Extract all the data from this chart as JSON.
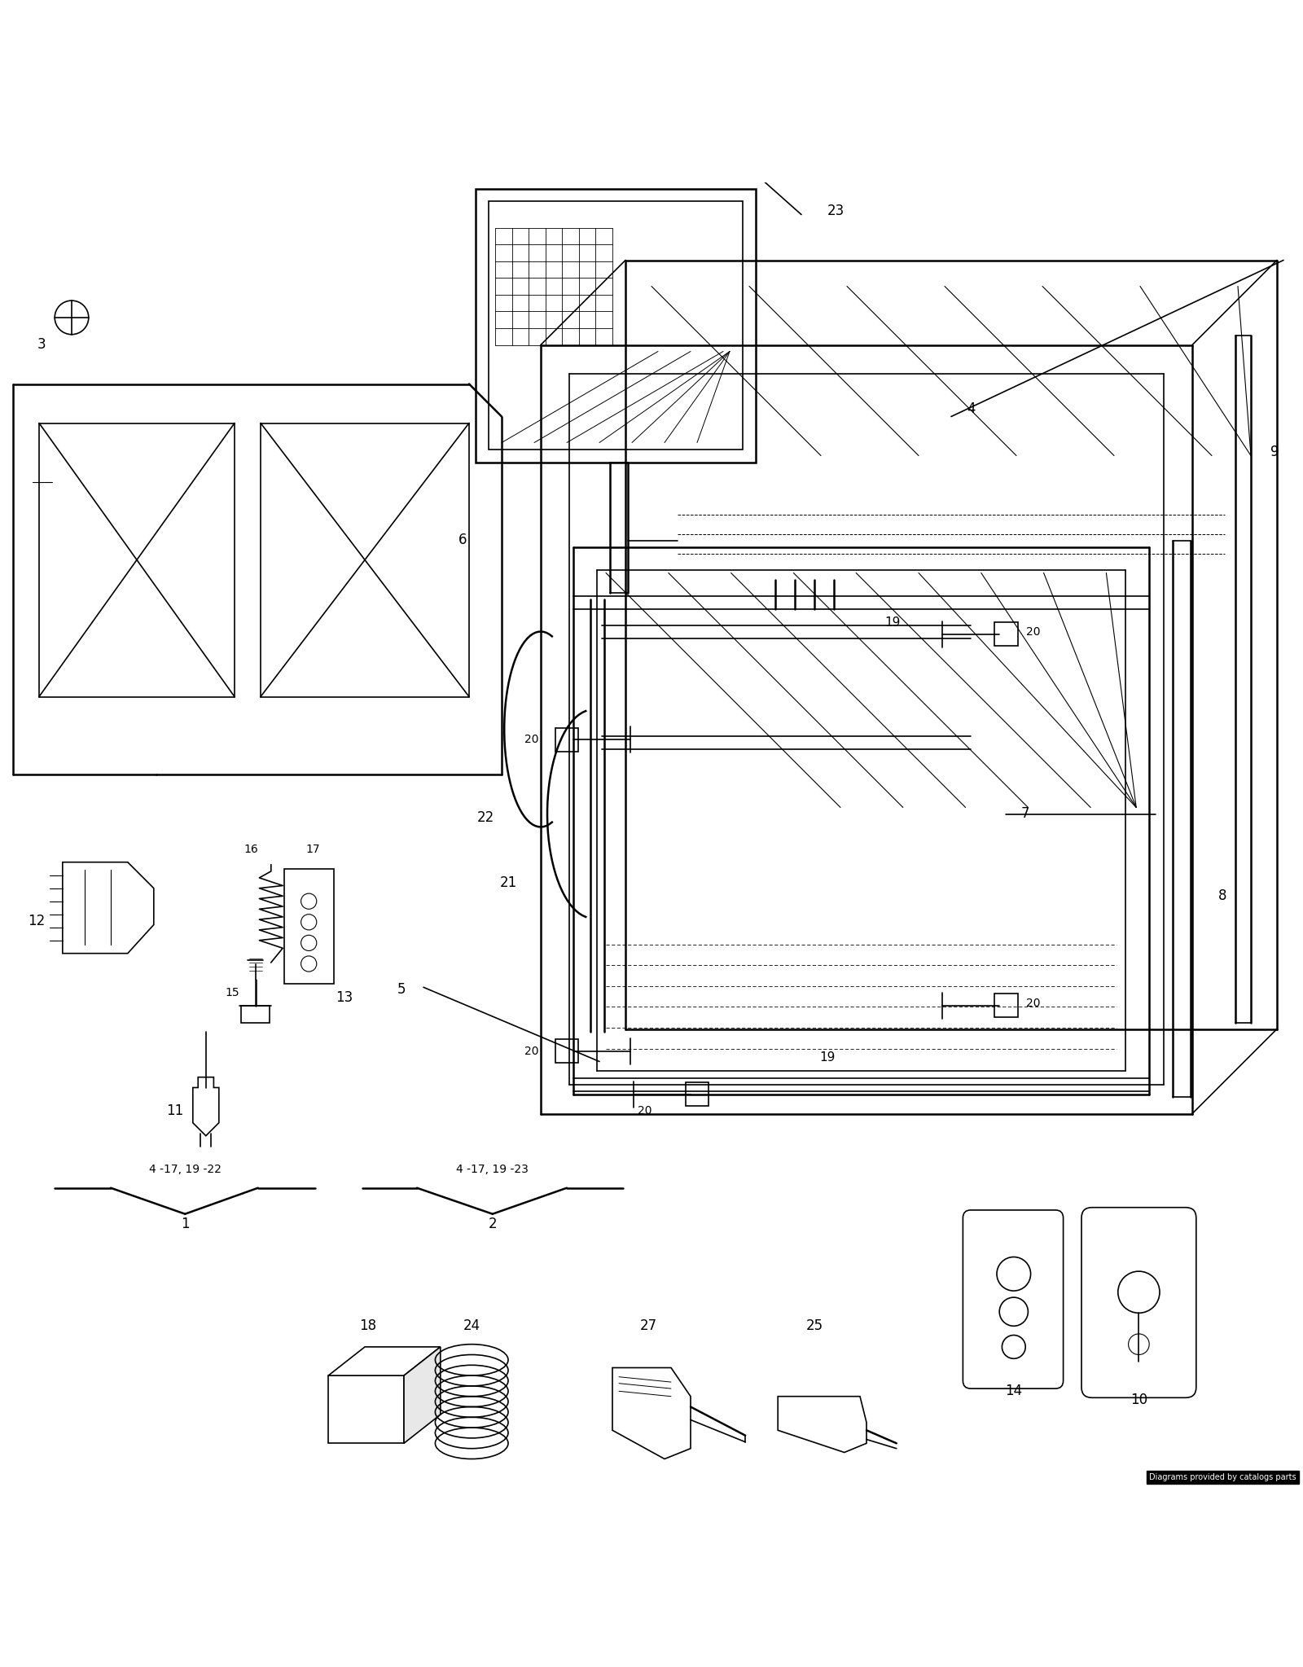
{
  "bg_color": "#ffffff",
  "line_color": "#000000",
  "fig_width": 16.0,
  "fig_height": 20.47,
  "dpi": 100,
  "watermark": "Diagrams provided by catalogs parts",
  "ref1": "4 -17, 19 -22",
  "ref2": "4 -17, 19 -23"
}
